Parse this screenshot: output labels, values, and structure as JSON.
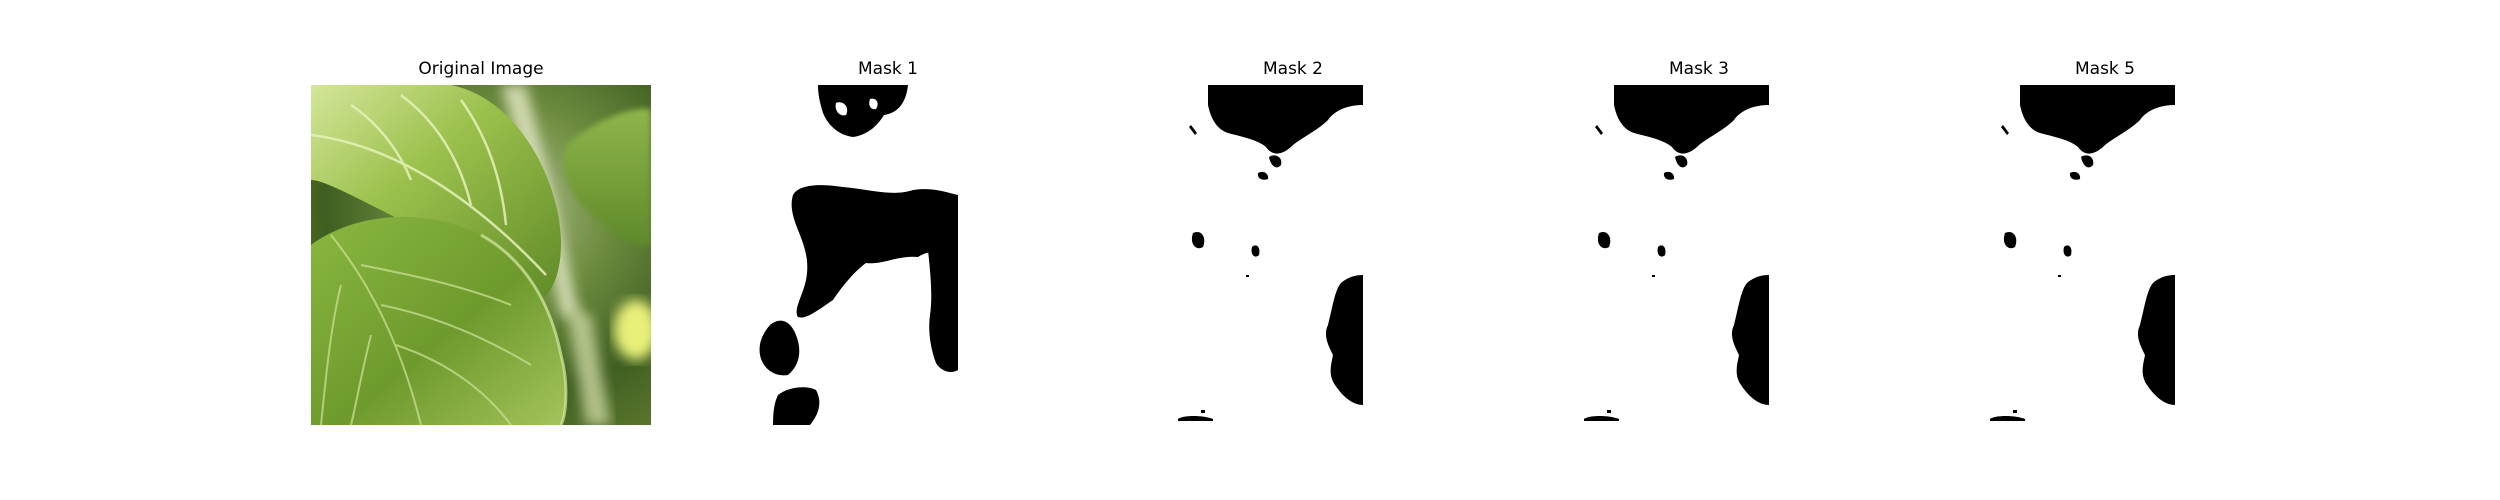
{
  "panels": [
    {
      "title": "Original Image",
      "kind": "photo",
      "subject": "leaf-closeup"
    },
    {
      "title": "Mask 1",
      "kind": "mask"
    },
    {
      "title": "Mask 2",
      "kind": "mask"
    },
    {
      "title": "Mask 3",
      "kind": "mask"
    },
    {
      "title": "Mask 5",
      "kind": "mask"
    }
  ],
  "colors": {
    "background": "#ffffff",
    "mask_foreground": "#000000",
    "mask_background": "#ffffff",
    "leaf_dark": "#4f7a22",
    "leaf_mid": "#7ea535",
    "leaf_light": "#b8d26a",
    "leaf_bright": "#e4ee9a",
    "blur_bg": "#6c8f3a"
  }
}
